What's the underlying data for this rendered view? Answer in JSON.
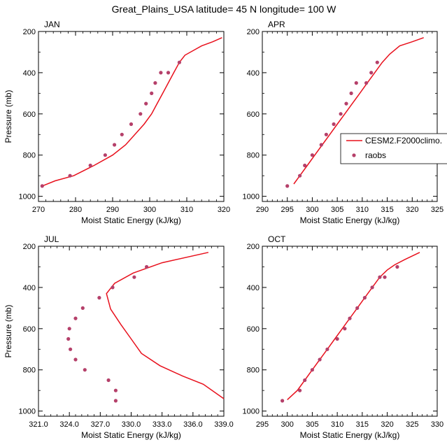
{
  "figure": {
    "title": "Great_Plains_USA  latitude= 45 N longitude= 100 W"
  },
  "legend": {
    "model_label": "CESM2.F2000climo.",
    "obs_label": "raobs",
    "placement": "right side of APR panel"
  },
  "colors": {
    "model_line": "#e8101c",
    "obs_marker": "#b5406a"
  },
  "chart_data": [
    {
      "type": "line",
      "panel_label": "JAN",
      "xlabel": "Moist Static Energy (kJ/kg)",
      "ylabel": "Pressure (mb)",
      "xlim": [
        270,
        320
      ],
      "ylim": [
        1025,
        200
      ],
      "xticks": [
        "270",
        "280",
        "290",
        "300",
        "310",
        "320"
      ],
      "yticks": [
        "200",
        "400",
        "600",
        "800",
        "1000"
      ],
      "series": [
        {
          "name": "CESM2.F2000climo.",
          "kind": "line",
          "x": [
            271.0,
            274.5,
            279.5,
            285.0,
            290.0,
            293.5,
            296.0,
            298.5,
            300.5,
            302.0,
            303.5,
            305.0,
            306.5,
            308.0,
            309.5,
            312.0,
            314.0,
            317.0,
            319.5
          ],
          "y": [
            950,
            925,
            900,
            850,
            800,
            750,
            700,
            650,
            600,
            550,
            500,
            450,
            400,
            350,
            315,
            290,
            270,
            250,
            230
          ]
        },
        {
          "name": "raobs",
          "kind": "scatter",
          "x": [
            271.0,
            278.5,
            284.0,
            288.0,
            290.5,
            292.5,
            295.0,
            297.5,
            299.0,
            300.5,
            301.5,
            303.0,
            305.0,
            308.0
          ],
          "y": [
            950,
            900,
            850,
            800,
            750,
            700,
            650,
            600,
            550,
            500,
            450,
            400,
            400,
            350
          ]
        }
      ]
    },
    {
      "type": "line",
      "panel_label": "APR",
      "xlabel": "Moist Static Energy (kJ/kg)",
      "ylabel": "",
      "xlim": [
        290,
        325
      ],
      "ylim": [
        1025,
        200
      ],
      "xticks": [
        "290",
        "295",
        "300",
        "305",
        "310",
        "315",
        "320",
        "325"
      ],
      "yticks": [
        "200",
        "400",
        "600",
        "800",
        "1000"
      ],
      "series": [
        {
          "name": "CESM2.F2000climo.",
          "kind": "line",
          "x": [
            296.3,
            297.5,
            299.0,
            300.5,
            302.0,
            303.5,
            305.0,
            306.5,
            308.0,
            309.5,
            311.0,
            312.5,
            314.0,
            315.5,
            317.5,
            320.0,
            322.3
          ],
          "y": [
            940,
            900,
            850,
            800,
            750,
            700,
            650,
            600,
            550,
            500,
            450,
            400,
            350,
            310,
            270,
            250,
            230
          ]
        },
        {
          "name": "raobs",
          "kind": "scatter",
          "x": [
            295.0,
            297.5,
            298.5,
            300.0,
            301.8,
            302.8,
            304.3,
            305.7,
            306.8,
            307.8,
            308.8,
            310.8,
            311.8,
            313.0
          ],
          "y": [
            950,
            900,
            850,
            800,
            750,
            700,
            650,
            600,
            550,
            500,
            450,
            450,
            400,
            350
          ]
        }
      ]
    },
    {
      "type": "line",
      "panel_label": "JUL",
      "xlabel": "Moist Static Energy (kJ/kg)",
      "ylabel": "Pressure (mb)",
      "xlim": [
        321,
        339
      ],
      "ylim": [
        1025,
        200
      ],
      "xticks": [
        "321.0",
        "324.0",
        "327.0",
        "330.0",
        "333.0",
        "336.0",
        "339.0"
      ],
      "yticks": [
        "200",
        "400",
        "600",
        "800",
        "1000"
      ],
      "series": [
        {
          "name": "CESM2.F2000climo.",
          "kind": "line",
          "x": [
            339.0,
            337.0,
            335.0,
            332.8,
            331.0,
            330.0,
            329.0,
            328.0,
            327.6,
            328.4,
            330.2,
            333.0,
            337.5
          ],
          "y": [
            940,
            870,
            830,
            780,
            720,
            650,
            580,
            505,
            430,
            380,
            330,
            280,
            230
          ]
        },
        {
          "name": "raobs",
          "kind": "scatter",
          "x": [
            328.5,
            328.5,
            327.8,
            325.5,
            324.6,
            324.1,
            323.9,
            324.0,
            324.6,
            325.3,
            326.9,
            328.2,
            330.3,
            331.5
          ],
          "y": [
            950,
            900,
            850,
            800,
            750,
            700,
            650,
            600,
            550,
            500,
            450,
            400,
            350,
            300
          ]
        }
      ]
    },
    {
      "type": "line",
      "panel_label": "OCT",
      "xlabel": "Moist Static Energy (kJ/kg)",
      "ylabel": "",
      "xlim": [
        295,
        330
      ],
      "ylim": [
        1025,
        200
      ],
      "xticks": [
        "295",
        "300",
        "305",
        "310",
        "315",
        "320",
        "325",
        "330"
      ],
      "yticks": [
        "200",
        "400",
        "600",
        "800",
        "1000"
      ],
      "series": [
        {
          "name": "CESM2.F2000climo.",
          "kind": "line",
          "x": [
            300.0,
            302.0,
            303.5,
            305.0,
            306.5,
            308.0,
            309.5,
            311.0,
            312.5,
            314.0,
            315.5,
            317.0,
            318.5,
            320.0,
            321.5,
            323.5,
            326.5
          ],
          "y": [
            945,
            900,
            850,
            800,
            750,
            700,
            650,
            600,
            550,
            500,
            450,
            400,
            350,
            315,
            290,
            265,
            230
          ]
        },
        {
          "name": "raobs",
          "kind": "scatter",
          "x": [
            299.0,
            302.5,
            303.5,
            305.0,
            306.5,
            308.0,
            310.0,
            311.5,
            312.5,
            314.0,
            315.5,
            317.0,
            318.5,
            319.5,
            322.0
          ],
          "y": [
            950,
            900,
            850,
            800,
            750,
            700,
            650,
            600,
            550,
            500,
            450,
            400,
            350,
            350,
            300
          ]
        }
      ]
    }
  ]
}
